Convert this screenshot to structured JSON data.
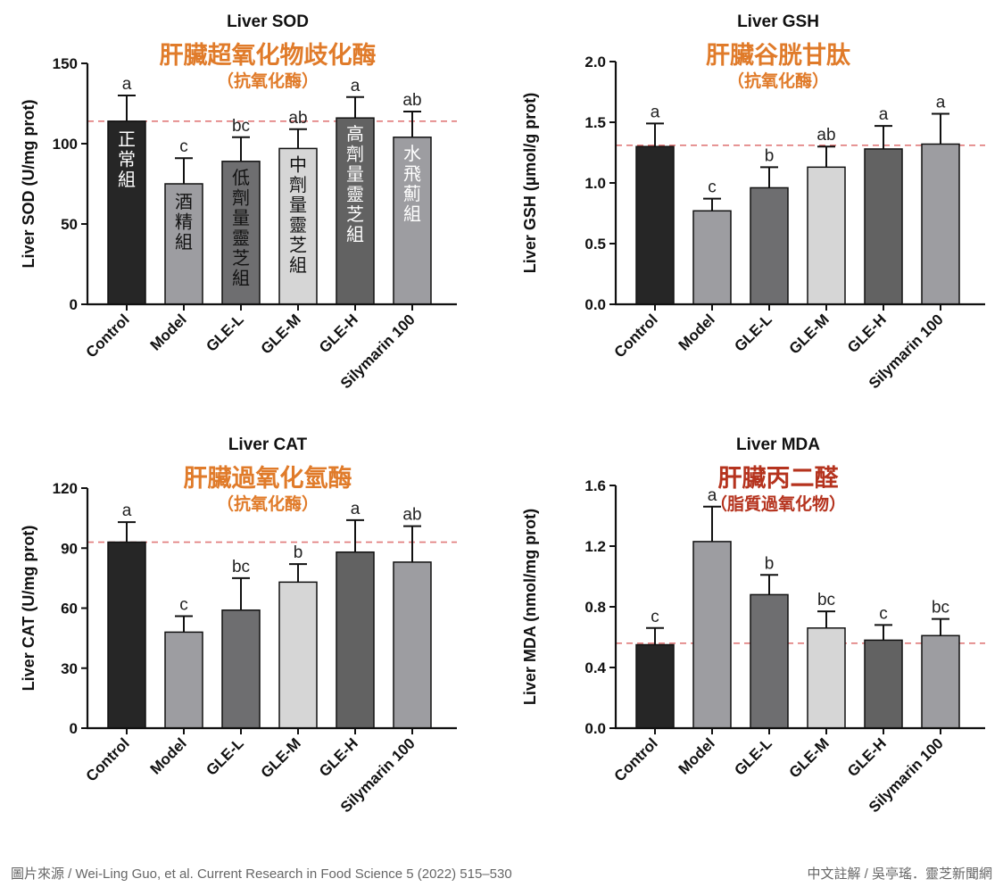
{
  "chart_data": [
    {
      "type": "bar",
      "title": "Liver SOD",
      "title_zh": "肝臟超氧化物歧化酶",
      "subtitle_zh": "（抗氧化酶）",
      "title_color": "#e07b2a",
      "ylabel": "Liver SOD (U/mg prot)",
      "ylim": [
        0,
        150
      ],
      "yticks": [
        0,
        50,
        100,
        150
      ],
      "tick_decimals": 0,
      "categories": [
        "Control",
        "Model",
        "GLE-L",
        "GLE-M",
        "GLE-H",
        "Silymarin 100"
      ],
      "values": [
        114,
        75,
        89,
        97,
        116,
        104
      ],
      "errors": [
        16,
        16,
        15,
        12,
        13,
        16
      ],
      "letters": [
        "a",
        "c",
        "bc",
        "ab",
        "a",
        "ab"
      ],
      "bar_labels": [
        "正常組",
        "酒精組",
        "低劑量靈芝組",
        "中劑量靈芝組",
        "高劑量靈芝組",
        "水飛薊組"
      ],
      "bar_colors": [
        "#262626",
        "#9d9da1",
        "#6e6e70",
        "#d6d6d6",
        "#626262",
        "#9d9da1"
      ],
      "bar_label_colors": [
        "#ffffff",
        "#111111",
        "#111111",
        "#111111",
        "#ffffff",
        "#ffffff"
      ],
      "reference_line": 114
    },
    {
      "type": "bar",
      "title": "Liver GSH",
      "title_zh": "肝臟谷胱甘肽",
      "subtitle_zh": "（抗氧化酶）",
      "title_color": "#e07b2a",
      "ylabel": "Liver GSH (µmol/g prot)",
      "ylim": [
        0,
        2.0
      ],
      "yticks": [
        0,
        0.5,
        1.0,
        1.5,
        2.0
      ],
      "tick_decimals": 1,
      "categories": [
        "Control",
        "Model",
        "GLE-L",
        "GLE-M",
        "GLE-H",
        "Silymarin 100"
      ],
      "values": [
        1.3,
        0.77,
        0.96,
        1.13,
        1.28,
        1.32
      ],
      "errors": [
        0.19,
        0.1,
        0.17,
        0.17,
        0.19,
        0.25
      ],
      "letters": [
        "a",
        "c",
        "b",
        "ab",
        "a",
        "a"
      ],
      "bar_colors": [
        "#262626",
        "#9d9da1",
        "#6e6e70",
        "#d6d6d6",
        "#626262",
        "#9d9da1"
      ],
      "reference_line": 1.31
    },
    {
      "type": "bar",
      "title": "Liver CAT",
      "title_zh": "肝臟過氧化氫酶",
      "subtitle_zh": "（抗氧化酶）",
      "title_color": "#e07b2a",
      "ylabel": "Liver CAT (U/mg prot)",
      "ylim": [
        0,
        120
      ],
      "yticks": [
        0,
        30,
        60,
        90,
        120
      ],
      "tick_decimals": 0,
      "categories": [
        "Control",
        "Model",
        "GLE-L",
        "GLE-M",
        "GLE-H",
        "Silymarin 100"
      ],
      "values": [
        93,
        48,
        59,
        73,
        88,
        83
      ],
      "errors": [
        10,
        8,
        16,
        9,
        16,
        18
      ],
      "letters": [
        "a",
        "c",
        "bc",
        "b",
        "a",
        "ab"
      ],
      "bar_colors": [
        "#262626",
        "#9d9da1",
        "#6e6e70",
        "#d6d6d6",
        "#626262",
        "#9d9da1"
      ],
      "reference_line": 93
    },
    {
      "type": "bar",
      "title": "Liver MDA",
      "title_zh": "肝臟丙二醛",
      "subtitle_zh": "（脂質過氧化物）",
      "title_color": "#b5331e",
      "ylabel": "Liver MDA (nmol/mg prot)",
      "ylim": [
        0,
        1.6
      ],
      "yticks": [
        0,
        0.4,
        0.8,
        1.2,
        1.6
      ],
      "tick_decimals": 1,
      "categories": [
        "Control",
        "Model",
        "GLE-L",
        "GLE-M",
        "GLE-H",
        "Silymarin 100"
      ],
      "values": [
        0.55,
        1.23,
        0.88,
        0.66,
        0.58,
        0.61
      ],
      "errors": [
        0.11,
        0.23,
        0.13,
        0.11,
        0.1,
        0.11
      ],
      "letters": [
        "c",
        "a",
        "b",
        "bc",
        "c",
        "bc"
      ],
      "bar_colors": [
        "#262626",
        "#9d9da1",
        "#6e6e70",
        "#d6d6d6",
        "#626262",
        "#9d9da1"
      ],
      "reference_line": 0.56
    }
  ],
  "footer": {
    "source": "圖片來源 / Wei-Ling Guo, et al. Current Research in Food Science 5 (2022) 515–530",
    "credit": "中文註解 / 吳亭瑤．靈芝新聞網"
  },
  "colors": {
    "reference_line": "#e07a7a",
    "axis": "#111111"
  }
}
